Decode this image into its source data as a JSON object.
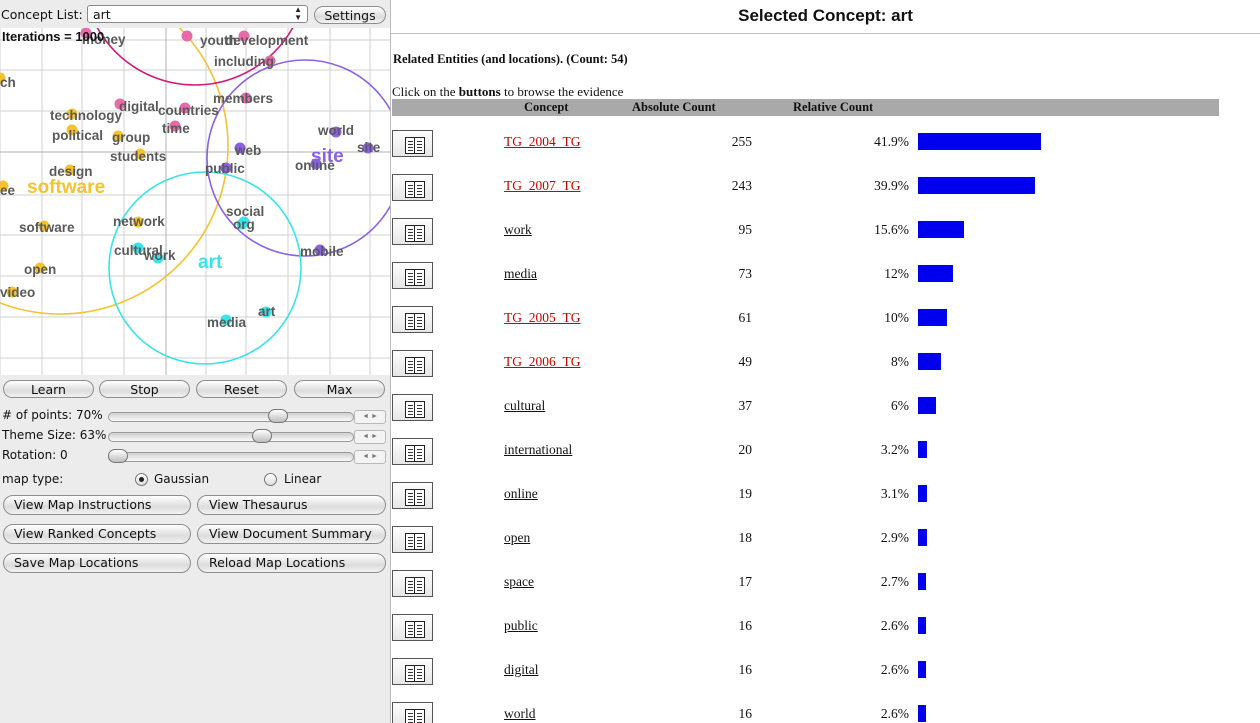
{
  "left_panel": {
    "concept_list_label": "Concept List:",
    "concept_select_value": "art",
    "settings_label": "Settings",
    "iterations_label": "Iterations = 1000",
    "buttons": {
      "learn": "Learn",
      "stop": "Stop",
      "reset": "Reset",
      "max": "Max"
    },
    "points_label": "# of points: 70%",
    "points_value": 0.7,
    "theme_size_label": "Theme Size: 63%",
    "theme_size_value": 0.63,
    "rotation_label": "Rotation: 0",
    "rotation_value": 0,
    "map_type_label": "map type:",
    "gaussian_label": "Gaussian",
    "linear_label": "Linear",
    "map_type_selected": "Gaussian",
    "view_map_instructions": "View Map Instructions",
    "view_thesaurus": "View Thesaurus",
    "view_ranked_concepts": "View Ranked Concepts",
    "view_document_summary": "View Document Summary",
    "save_map_locations": "Save Map Locations",
    "reload_map_locations": "Reload Map Locations"
  },
  "concept_map": {
    "theme_colors": {
      "software": "#f5c231",
      "art": "#3ae3e8",
      "site": "#8a62e6",
      "development": "#d8177a",
      "grid": "#d0d0d0"
    },
    "themes": [
      {
        "name": "software",
        "color": "#f5c231"
      },
      {
        "name": "art",
        "color": "#3ae3e8"
      },
      {
        "name": "site",
        "color": "#8a62e6"
      }
    ],
    "concepts": [
      {
        "label": "money",
        "dot_color": "#e86aa8"
      },
      {
        "label": "youth",
        "dot_color": "#e86aa8"
      },
      {
        "label": "development",
        "dot_color": "#e86aa8"
      },
      {
        "label": "including",
        "dot_color": "#e86aa8"
      },
      {
        "label": "ch",
        "dot_color": "#f5c231"
      },
      {
        "label": "technology",
        "dot_color": "#f5c231"
      },
      {
        "label": "digital",
        "dot_color": "#e86aa8"
      },
      {
        "label": "countries",
        "dot_color": "#e86aa8"
      },
      {
        "label": "members",
        "dot_color": "#e86aa8"
      },
      {
        "label": "political",
        "dot_color": "#f5c231"
      },
      {
        "label": "group",
        "dot_color": "#f5c231"
      },
      {
        "label": "time",
        "dot_color": "#e86aa8"
      },
      {
        "label": "students",
        "dot_color": "#f5c231"
      },
      {
        "label": "world",
        "dot_color": "#8a62e6"
      },
      {
        "label": "web",
        "dot_color": "#8a62e6"
      },
      {
        "label": "site",
        "dot_color": "#8a62e6"
      },
      {
        "label": "online",
        "dot_color": "#8a62e6"
      },
      {
        "label": "public",
        "dot_color": "#8a62e6"
      },
      {
        "label": "design",
        "dot_color": "#f5c231"
      },
      {
        "label": "ee",
        "dot_color": "#f5c231"
      },
      {
        "label": "social",
        "dot_color": "#3ae3e8"
      },
      {
        "label": "org",
        "dot_color": "#3ae3e8"
      },
      {
        "label": "software",
        "dot_color": "#f5c231"
      },
      {
        "label": "network",
        "dot_color": "#f5c231"
      },
      {
        "label": "cultural",
        "dot_color": "#3ae3e8"
      },
      {
        "label": "work",
        "dot_color": "#3ae3e8"
      },
      {
        "label": "mobile",
        "dot_color": "#8a62e6"
      },
      {
        "label": "open",
        "dot_color": "#f5c231"
      },
      {
        "label": "video",
        "dot_color": "#f5c231"
      },
      {
        "label": "art",
        "dot_color": "#3ae3e8"
      },
      {
        "label": "media",
        "dot_color": "#3ae3e8"
      }
    ]
  },
  "right_panel": {
    "title": "Selected Concept: art",
    "related_heading": "Related Entities (and locations). (Count: 54)",
    "hint_prefix": "Click on the ",
    "hint_bold": "buttons",
    "hint_suffix": " to browse the evidence",
    "columns": {
      "concept": "Concept",
      "absolute": "Absolute Count",
      "relative": "Relative Count"
    },
    "link_colors": {
      "red": "#cc0000",
      "black": "#111111"
    },
    "bar_color": "#0000ee",
    "rows": [
      {
        "concept": "TG_2004_TG",
        "absolute": "255",
        "relative": "41.9%",
        "relative_value": 41.9,
        "link_color": "red"
      },
      {
        "concept": "TG_2007_TG",
        "absolute": "243",
        "relative": "39.9%",
        "relative_value": 39.9,
        "link_color": "red"
      },
      {
        "concept": "work",
        "absolute": "95",
        "relative": "15.6%",
        "relative_value": 15.6,
        "link_color": "black"
      },
      {
        "concept": "media",
        "absolute": "73",
        "relative": "12%",
        "relative_value": 12,
        "link_color": "black"
      },
      {
        "concept": "TG_2005_TG",
        "absolute": "61",
        "relative": "10%",
        "relative_value": 10,
        "link_color": "red"
      },
      {
        "concept": "TG_2006_TG",
        "absolute": "49",
        "relative": "8%",
        "relative_value": 8,
        "link_color": "red"
      },
      {
        "concept": "cultural",
        "absolute": "37",
        "relative": "6%",
        "relative_value": 6,
        "link_color": "black"
      },
      {
        "concept": "international",
        "absolute": "20",
        "relative": "3.2%",
        "relative_value": 3.2,
        "link_color": "black"
      },
      {
        "concept": "online",
        "absolute": "19",
        "relative": "3.1%",
        "relative_value": 3.1,
        "link_color": "black"
      },
      {
        "concept": "open",
        "absolute": "18",
        "relative": "2.9%",
        "relative_value": 2.9,
        "link_color": "black"
      },
      {
        "concept": "space",
        "absolute": "17",
        "relative": "2.7%",
        "relative_value": 2.7,
        "link_color": "black"
      },
      {
        "concept": "public",
        "absolute": "16",
        "relative": "2.6%",
        "relative_value": 2.6,
        "link_color": "black"
      },
      {
        "concept": "digital",
        "absolute": "16",
        "relative": "2.6%",
        "relative_value": 2.6,
        "link_color": "black"
      },
      {
        "concept": "world",
        "absolute": "16",
        "relative": "2.6%",
        "relative_value": 2.6,
        "link_color": "black"
      }
    ]
  }
}
